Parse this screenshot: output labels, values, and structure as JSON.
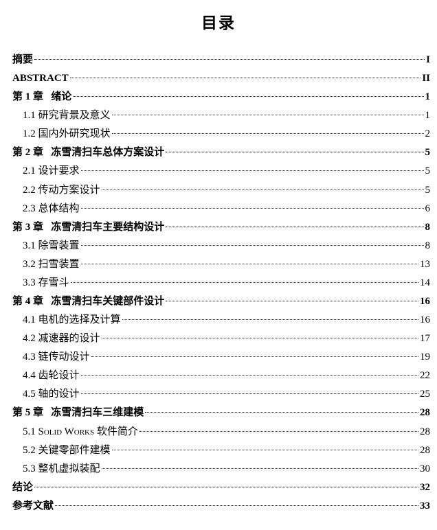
{
  "title": "目录",
  "entries": [
    {
      "level": 1,
      "label": "摘要",
      "page": "I"
    },
    {
      "level": 1,
      "label": "ABSTRACT",
      "page": "II"
    },
    {
      "level": 1,
      "label": "第 1 章   绪论",
      "page": "1"
    },
    {
      "level": 2,
      "label": "1.1 研究背景及意义",
      "page": "1"
    },
    {
      "level": 2,
      "label": "1.2 国内外研究现状",
      "page": "2"
    },
    {
      "level": 1,
      "label": "第 2 章   冻雪清扫车总体方案设计",
      "page": "5"
    },
    {
      "level": 2,
      "label": "2.1 设计要求",
      "page": "5"
    },
    {
      "level": 2,
      "label": "2.2 传动方案设计",
      "page": "5"
    },
    {
      "level": 2,
      "label": "2.3 总体结构",
      "page": "6"
    },
    {
      "level": 1,
      "label": "第 3 章   冻雪清扫车主要结构设计",
      "page": "8"
    },
    {
      "level": 2,
      "label": "3.1 除雪装置",
      "page": "8"
    },
    {
      "level": 2,
      "label": "3.2 扫雪装置",
      "page": "13"
    },
    {
      "level": 2,
      "label": "3.3 存雪斗",
      "page": "14"
    },
    {
      "level": 1,
      "label": "第 4 章   冻雪清扫车关键部件设计",
      "page": "16"
    },
    {
      "level": 2,
      "label": "4.1 电机的选择及计算",
      "page": "16"
    },
    {
      "level": 2,
      "label": "4.2 减速器的设计",
      "page": "17"
    },
    {
      "level": 2,
      "label": "4.3 链传动设计",
      "page": "19"
    },
    {
      "level": 2,
      "label": "4.4 齿轮设计",
      "page": "22"
    },
    {
      "level": 2,
      "label": "4.5 轴的设计",
      "page": "25"
    },
    {
      "level": 1,
      "label": "第 5 章   冻雪清扫车三维建模",
      "page": "28"
    },
    {
      "level": 2,
      "label": "5.1 Solid Works 软件简介",
      "page": "28"
    },
    {
      "level": 2,
      "label": "5.2 关键零部件建模",
      "page": "28"
    },
    {
      "level": 2,
      "label": "5.3 整机虚拟装配",
      "page": "30"
    },
    {
      "level": 1,
      "label": "结论",
      "page": "32"
    },
    {
      "level": 1,
      "label": "参考文献",
      "page": "33"
    }
  ]
}
